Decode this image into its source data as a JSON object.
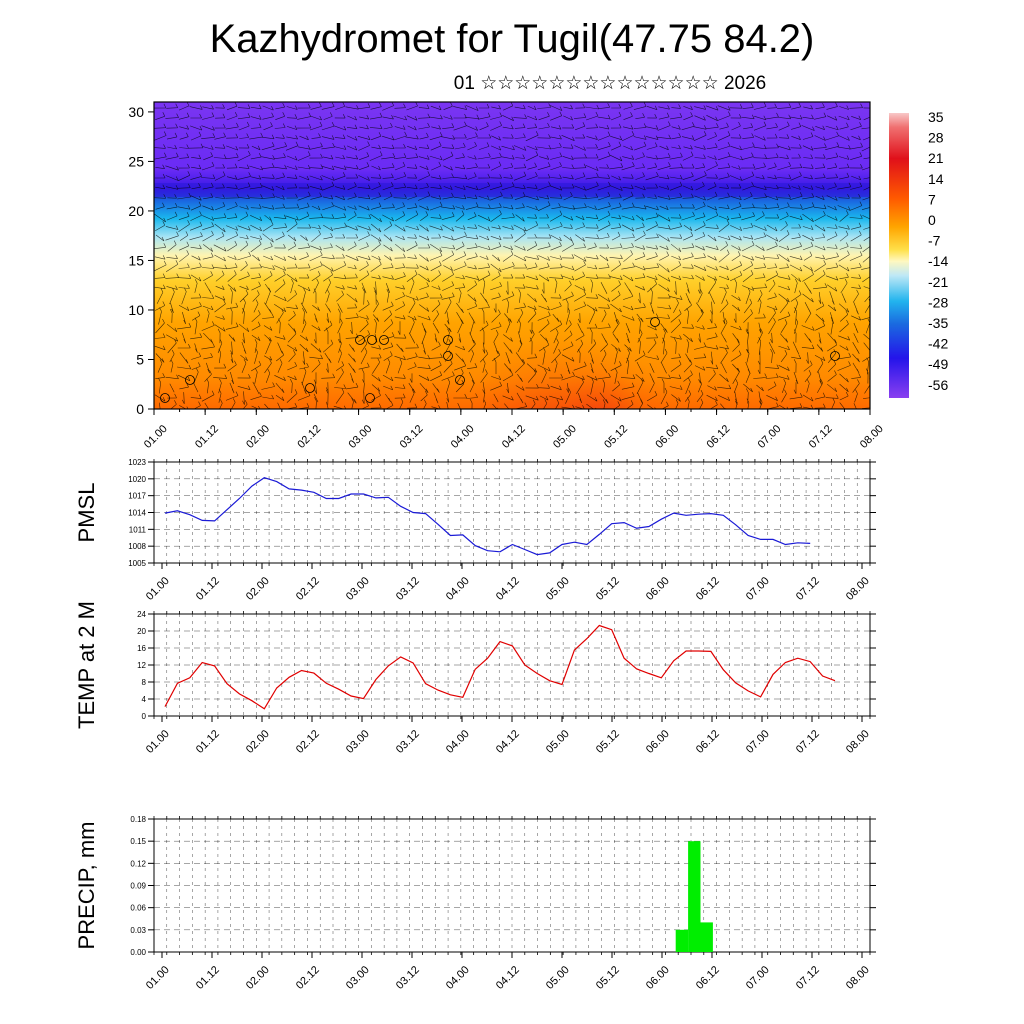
{
  "title": "Kazhydromet for Tugil(47.75 84.2)",
  "subtitle": "01 ☆☆☆☆☆☆☆☆☆☆☆☆☆☆ 2026",
  "time_labels": [
    "01.00",
    "01.12",
    "02.00",
    "02.12",
    "03.00",
    "03.12",
    "04.00",
    "04.12",
    "05.00",
    "05.12",
    "06.00",
    "06.12",
    "07.00",
    "07.12",
    "08.00"
  ],
  "chart_data": [
    {
      "type": "heatmap",
      "name": "temperature-wind-cross-section",
      "y_ticks": [
        0,
        5,
        10,
        15,
        20,
        25,
        30
      ],
      "ylim": [
        0,
        31
      ],
      "xlim": [
        0,
        14
      ],
      "colorbar_labels": [
        "35",
        "28",
        "21",
        "14",
        "7",
        "0",
        "-7",
        "-14",
        "-21",
        "-28",
        "-35",
        "-42",
        "-49",
        "-56"
      ],
      "colors": {
        "warm": "#ff6a00",
        "hot": "#e8140c",
        "mid": "#ffc61a",
        "cold": "#6a2bf5",
        "wind": "#000000"
      }
    },
    {
      "type": "line",
      "name": "pmsl",
      "ylabel": "PMSL",
      "y_ticks": [
        1005,
        1008,
        1011,
        1014,
        1017,
        1020,
        1023
      ],
      "ylim": [
        1005,
        1023
      ],
      "color": "#1a1ad6",
      "x": [
        0,
        0.25,
        0.5,
        0.75,
        1,
        1.25,
        1.5,
        1.75,
        2,
        2.25,
        2.5,
        2.75,
        3,
        3.25,
        3.5,
        3.75,
        4,
        4.25,
        4.5,
        4.75,
        5,
        5.25,
        5.5,
        5.75,
        6,
        6.25,
        6.5,
        6.75,
        7,
        7.25,
        7.5,
        7.75,
        8
      ],
      "values": [
        1013.9,
        1014.3,
        1013.6,
        1012.6,
        1012.5,
        1014.5,
        1016.5,
        1018.7,
        1020.2,
        1019.5,
        1018.2,
        1018.0,
        1017.6,
        1016.5,
        1016.5,
        1017.3,
        1017.3,
        1016.6,
        1016.7,
        1015.1,
        1014.0,
        1013.8,
        1011.9,
        1009.9,
        1010.0,
        1008.1,
        1007.2,
        1007.0,
        1008.3,
        1007.4,
        1006.5,
        1006.8,
        1008.3
      ],
      "x2": [
        8.25,
        8.5,
        8.75,
        9,
        9.25,
        9.5,
        9.75,
        10,
        10.25,
        10.5,
        10.75,
        11,
        11.25,
        11.5,
        11.75,
        12,
        12.25,
        12.5,
        12.75,
        13,
        13.25,
        13.5,
        13.75,
        14
      ],
      "values2": [
        1008.7,
        1008.3,
        1010.1,
        1012.0,
        1012.2,
        1011.2,
        1011.5,
        1012.8,
        1013.9,
        1013.5,
        1013.7,
        1013.8,
        1013.5,
        1011.8,
        1009.9,
        1009.2,
        1009.2,
        1008.3,
        1008.6,
        1008.5,
        0,
        0,
        0,
        0
      ]
    },
    {
      "type": "line",
      "name": "temp-2m",
      "ylabel": "TEMP at 2 M",
      "y_ticks": [
        0,
        4,
        8,
        12,
        16,
        20,
        24
      ],
      "ylim": [
        0,
        24
      ],
      "color": "#e00000",
      "x": [
        0,
        0.25,
        0.5,
        0.75,
        1,
        1.25,
        1.5,
        1.75,
        2,
        2.25,
        2.5,
        2.75,
        3,
        3.25,
        3.5,
        3.75,
        4,
        4.25,
        4.5,
        4.75,
        5,
        5.25,
        5.5,
        5.75,
        6,
        6.25,
        6.5,
        6.75,
        7,
        7.25,
        7.5,
        7.75,
        8,
        8.25,
        8.5,
        8.75,
        9,
        9.25,
        9.5,
        9.75,
        10,
        10.25,
        10.5,
        10.75,
        11,
        11.25,
        11.5,
        11.75,
        12,
        12.25,
        12.5,
        12.75,
        13,
        13.25,
        13.5
      ],
      "values": [
        2.2,
        7.7,
        9.0,
        12.6,
        11.8,
        7.6,
        5.2,
        3.6,
        1.7,
        6.6,
        9.1,
        10.7,
        10.1,
        7.7,
        6.3,
        4.7,
        4.1,
        8.6,
        11.8,
        13.9,
        12.5,
        7.6,
        6.1,
        5.0,
        4.4,
        11.0,
        13.6,
        17.5,
        16.5,
        12.0,
        10.0,
        8.3,
        7.4,
        15.5,
        18.2,
        21.3,
        20.3,
        13.6,
        11.1,
        10.0,
        9.0,
        13.0,
        15.3,
        15.3,
        15.2,
        10.9,
        7.8,
        5.9,
        4.5,
        9.8,
        12.6,
        13.6,
        12.8,
        9.4,
        8.3
      ]
    },
    {
      "type": "bar",
      "name": "precip",
      "ylabel": "PRECIP, mm",
      "y_ticks": [
        "0.00",
        "0.03",
        "0.06",
        "0.09",
        "0.12",
        "0.15",
        "0.18"
      ],
      "ylim": [
        0,
        0.18
      ],
      "color": "#00ee00",
      "bars": [
        {
          "x0": 10.25,
          "x1": 10.5,
          "value": 0.03
        },
        {
          "x0": 10.5,
          "x1": 10.75,
          "value": 0.15
        },
        {
          "x0": 10.75,
          "x1": 11.0,
          "value": 0.04
        }
      ]
    }
  ]
}
